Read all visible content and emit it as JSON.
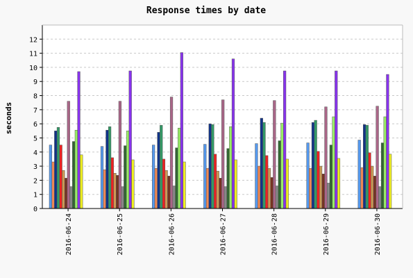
{
  "chart_data": {
    "type": "bar",
    "title": "Response times by date",
    "xlabel": "",
    "ylabel": "seconds",
    "ylim": [
      0,
      13
    ],
    "yticks": [
      0,
      1,
      2,
      3,
      4,
      5,
      6,
      7,
      8,
      9,
      10,
      11,
      12
    ],
    "grid": true,
    "categories": [
      "2016-06-24",
      "2016-06-25",
      "2016-06-26",
      "2016-06-27",
      "2016-06-28",
      "2016-06-29",
      "2016-06-30"
    ],
    "series": [
      {
        "color": "#5599ee",
        "values": [
          4.5,
          4.4,
          4.5,
          4.55,
          4.6,
          4.65,
          4.85
        ]
      },
      {
        "color": "#ee8855",
        "values": [
          3.3,
          2.75,
          2.85,
          2.85,
          3.0,
          2.85,
          2.9
        ]
      },
      {
        "color": "#113388",
        "values": [
          5.5,
          5.55,
          5.4,
          6.0,
          6.4,
          6.1,
          5.95
        ]
      },
      {
        "color": "#339966",
        "values": [
          5.75,
          5.8,
          5.9,
          5.95,
          6.1,
          6.25,
          5.9
        ]
      },
      {
        "color": "#ee2222",
        "values": [
          4.5,
          3.6,
          3.5,
          3.85,
          3.75,
          4.05,
          3.95
        ]
      },
      {
        "color": "#cc9955",
        "values": [
          2.7,
          2.5,
          2.7,
          2.65,
          2.85,
          3.0,
          3.0
        ]
      },
      {
        "color": "#773322",
        "values": [
          2.15,
          2.35,
          2.3,
          2.15,
          2.2,
          2.45,
          2.3
        ]
      },
      {
        "color": "#aa6688",
        "values": [
          7.6,
          7.6,
          7.9,
          7.7,
          7.65,
          7.2,
          7.25
        ]
      },
      {
        "color": "#888888",
        "values": [
          1.55,
          1.55,
          1.6,
          1.55,
          1.6,
          1.8,
          1.55
        ]
      },
      {
        "color": "#336633",
        "values": [
          4.75,
          4.45,
          4.3,
          4.25,
          4.8,
          4.5,
          4.65
        ]
      },
      {
        "color": "#99ee66",
        "values": [
          5.55,
          5.5,
          5.7,
          5.8,
          6.05,
          6.5,
          6.5
        ]
      },
      {
        "color": "#8833ee",
        "values": [
          9.7,
          9.75,
          11.05,
          10.6,
          9.75,
          9.75,
          9.5
        ]
      },
      {
        "color": "#eeee22",
        "values": [
          3.8,
          3.45,
          3.3,
          3.45,
          3.5,
          3.55,
          3.85
        ]
      }
    ]
  }
}
